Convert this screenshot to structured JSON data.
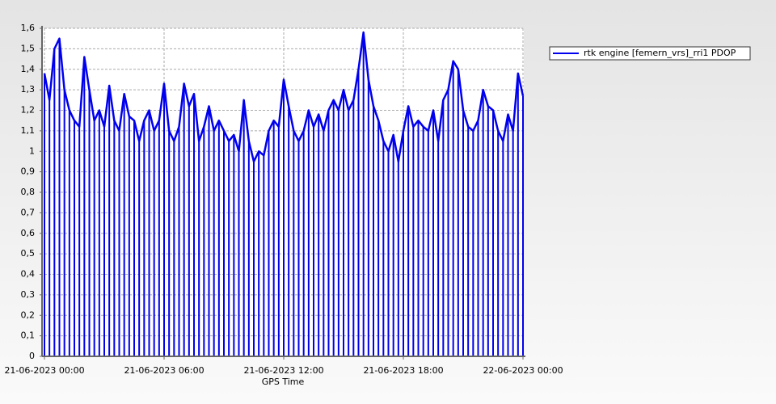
{
  "chart_data": {
    "type": "line",
    "x_label": "GPS Time",
    "drop_lines": true,
    "grid": true,
    "legend_position": "top-right",
    "x": [
      "21-06-2023 00:00",
      "21-06-2023 00:15",
      "21-06-2023 00:30",
      "21-06-2023 00:45",
      "21-06-2023 01:00",
      "21-06-2023 01:15",
      "21-06-2023 01:30",
      "21-06-2023 01:45",
      "21-06-2023 02:00",
      "21-06-2023 02:15",
      "21-06-2023 02:30",
      "21-06-2023 02:45",
      "21-06-2023 03:00",
      "21-06-2023 03:15",
      "21-06-2023 03:30",
      "21-06-2023 03:45",
      "21-06-2023 04:00",
      "21-06-2023 04:15",
      "21-06-2023 04:30",
      "21-06-2023 04:45",
      "21-06-2023 05:00",
      "21-06-2023 05:15",
      "21-06-2023 05:30",
      "21-06-2023 05:45",
      "21-06-2023 06:00",
      "21-06-2023 06:15",
      "21-06-2023 06:30",
      "21-06-2023 06:45",
      "21-06-2023 07:00",
      "21-06-2023 07:15",
      "21-06-2023 07:30",
      "21-06-2023 07:45",
      "21-06-2023 08:00",
      "21-06-2023 08:15",
      "21-06-2023 08:30",
      "21-06-2023 08:45",
      "21-06-2023 09:00",
      "21-06-2023 09:15",
      "21-06-2023 09:30",
      "21-06-2023 09:45",
      "21-06-2023 10:00",
      "21-06-2023 10:15",
      "21-06-2023 10:30",
      "21-06-2023 10:45",
      "21-06-2023 11:00",
      "21-06-2023 11:15",
      "21-06-2023 11:30",
      "21-06-2023 11:45",
      "21-06-2023 12:00",
      "21-06-2023 12:15",
      "21-06-2023 12:30",
      "21-06-2023 12:45",
      "21-06-2023 13:00",
      "21-06-2023 13:15",
      "21-06-2023 13:30",
      "21-06-2023 13:45",
      "21-06-2023 14:00",
      "21-06-2023 14:15",
      "21-06-2023 14:30",
      "21-06-2023 14:45",
      "21-06-2023 15:00",
      "21-06-2023 15:15",
      "21-06-2023 15:30",
      "21-06-2023 15:45",
      "21-06-2023 16:00",
      "21-06-2023 16:15",
      "21-06-2023 16:30",
      "21-06-2023 16:45",
      "21-06-2023 17:00",
      "21-06-2023 17:15",
      "21-06-2023 17:30",
      "21-06-2023 17:45",
      "21-06-2023 18:00",
      "21-06-2023 18:15",
      "21-06-2023 18:30",
      "21-06-2023 18:45",
      "21-06-2023 19:00",
      "21-06-2023 19:15",
      "21-06-2023 19:30",
      "21-06-2023 19:45",
      "21-06-2023 20:00",
      "21-06-2023 20:15",
      "21-06-2023 20:30",
      "21-06-2023 20:45",
      "21-06-2023 21:00",
      "21-06-2023 21:15",
      "21-06-2023 21:30",
      "21-06-2023 21:45",
      "21-06-2023 22:00",
      "21-06-2023 22:15",
      "21-06-2023 22:30",
      "21-06-2023 22:45",
      "21-06-2023 23:00",
      "21-06-2023 23:15",
      "21-06-2023 23:30",
      "21-06-2023 23:45",
      "22-06-2023 00:00"
    ],
    "series": [
      {
        "name": "rtk engine [femern_vrs]_rri1 PDOP",
        "color": "#0000ee",
        "values": [
          1.38,
          1.25,
          1.5,
          1.55,
          1.3,
          1.2,
          1.15,
          1.12,
          1.46,
          1.3,
          1.15,
          1.2,
          1.12,
          1.32,
          1.15,
          1.1,
          1.28,
          1.17,
          1.15,
          1.05,
          1.15,
          1.2,
          1.1,
          1.15,
          1.33,
          1.1,
          1.05,
          1.12,
          1.33,
          1.22,
          1.28,
          1.05,
          1.12,
          1.22,
          1.1,
          1.15,
          1.1,
          1.05,
          1.08,
          1.0,
          1.25,
          1.05,
          0.95,
          1.0,
          0.98,
          1.1,
          1.15,
          1.12,
          1.35,
          1.22,
          1.1,
          1.05,
          1.1,
          1.2,
          1.12,
          1.18,
          1.1,
          1.2,
          1.25,
          1.2,
          1.3,
          1.2,
          1.25,
          1.4,
          1.58,
          1.35,
          1.22,
          1.15,
          1.05,
          1.0,
          1.08,
          0.95,
          1.1,
          1.22,
          1.12,
          1.15,
          1.12,
          1.1,
          1.2,
          1.05,
          1.25,
          1.3,
          1.44,
          1.4,
          1.2,
          1.12,
          1.1,
          1.15,
          1.3,
          1.22,
          1.2,
          1.1,
          1.05,
          1.18,
          1.1,
          1.38,
          1.27
        ]
      }
    ],
    "xlim": [
      "21-06-2023 00:00",
      "22-06-2023 00:00"
    ],
    "xticks": [
      "21-06-2023 00:00",
      "21-06-2023 06:00",
      "21-06-2023 12:00",
      "21-06-2023 18:00",
      "22-06-2023 00:00"
    ],
    "ylim": [
      0,
      1.6
    ],
    "yticks": [
      0,
      {
        "value": 0.1,
        "label": "0,1"
      },
      {
        "value": 0.2,
        "label": "0,2"
      },
      {
        "value": 0.3,
        "label": "0,3"
      },
      {
        "value": 0.4,
        "label": "0,4"
      },
      {
        "value": 0.5,
        "label": "0,5"
      },
      {
        "value": 0.6,
        "label": "0,6"
      },
      {
        "value": 0.7,
        "label": "0,7"
      },
      {
        "value": 0.8,
        "label": "0,8"
      },
      {
        "value": 0.9,
        "label": "0,9"
      },
      1,
      {
        "value": 1.1,
        "label": "1,1"
      },
      {
        "value": 1.2,
        "label": "1,2"
      },
      {
        "value": 1.3,
        "label": "1,3"
      },
      {
        "value": 1.4,
        "label": "1,4"
      },
      {
        "value": 1.5,
        "label": "1,5"
      },
      {
        "value": 1.6,
        "label": "1,6"
      }
    ]
  }
}
